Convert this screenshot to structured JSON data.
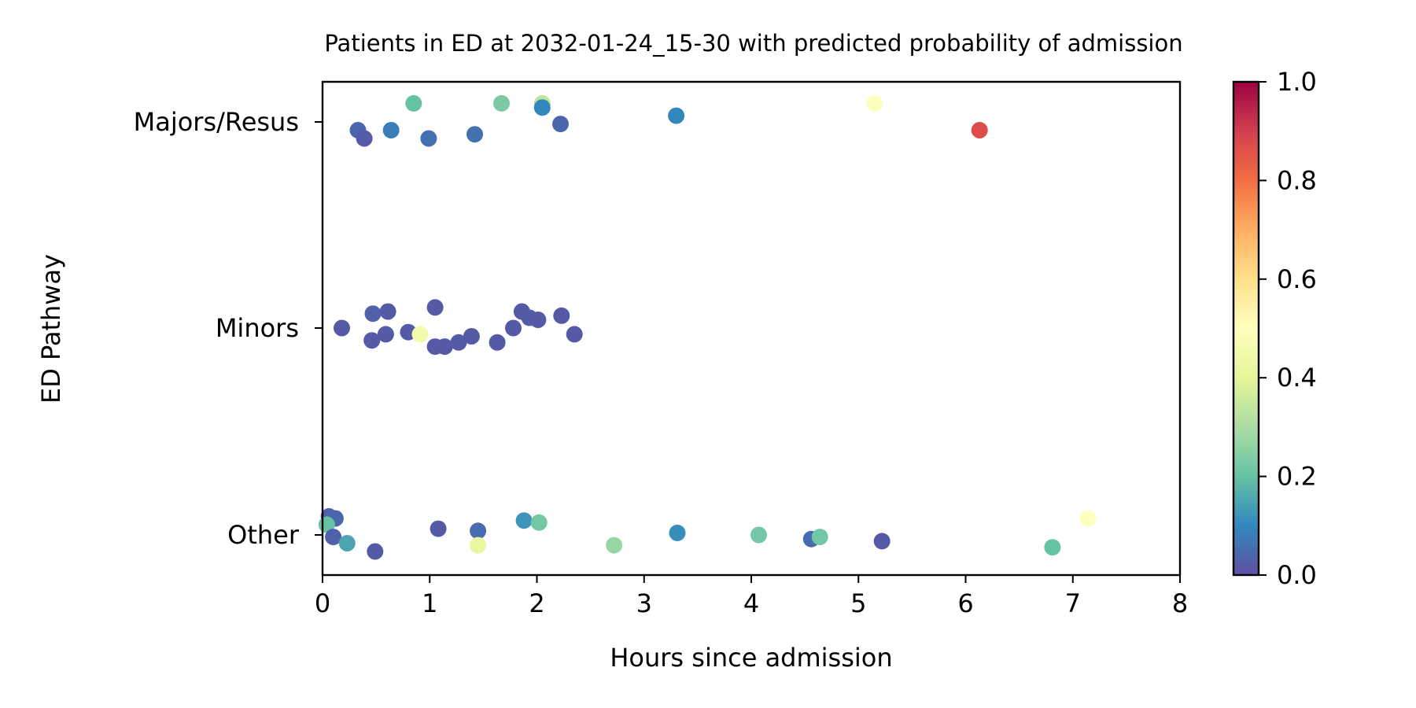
{
  "chart_data": {
    "type": "scatter",
    "title": "Patients in ED at 2032-01-24_15-30 with predicted probability of admission",
    "xlabel": "Hours since admission",
    "ylabel": "ED Pathway",
    "xlim": [
      0,
      8
    ],
    "x_ticks": [
      "0",
      "1",
      "2",
      "3",
      "4",
      "5",
      "6",
      "7",
      "8"
    ],
    "categories": [
      "Majors/Resus",
      "Minors",
      "Other"
    ],
    "grid": false,
    "colormap": "Spectral_r",
    "colorbar": {
      "range": [
        0,
        1
      ],
      "ticks": [
        "0.0",
        "0.2",
        "0.4",
        "0.6",
        "0.8",
        "1.0"
      ]
    },
    "series": [
      {
        "category": "Majors/Resus",
        "points": [
          {
            "x": 0.85,
            "jitter": 0.09,
            "p": 0.2
          },
          {
            "x": 1.67,
            "jitter": 0.09,
            "p": 0.23
          },
          {
            "x": 2.05,
            "jitter": 0.09,
            "p": 0.33
          },
          {
            "x": 2.05,
            "jitter": 0.07,
            "p": 0.1
          },
          {
            "x": 5.15,
            "jitter": 0.09,
            "p": 0.5
          },
          {
            "x": 3.3,
            "jitter": 0.03,
            "p": 0.1
          },
          {
            "x": 2.22,
            "jitter": -0.01,
            "p": 0.04
          },
          {
            "x": 0.33,
            "jitter": -0.04,
            "p": 0.04
          },
          {
            "x": 0.39,
            "jitter": -0.08,
            "p": 0.02
          },
          {
            "x": 0.64,
            "jitter": -0.04,
            "p": 0.08
          },
          {
            "x": 0.99,
            "jitter": -0.08,
            "p": 0.06
          },
          {
            "x": 1.42,
            "jitter": -0.06,
            "p": 0.06
          },
          {
            "x": 6.13,
            "jitter": -0.04,
            "p": 0.87
          }
        ]
      },
      {
        "category": "Minors",
        "points": [
          {
            "x": 0.18,
            "jitter": 0.0,
            "p": 0.02
          },
          {
            "x": 0.47,
            "jitter": 0.07,
            "p": 0.03
          },
          {
            "x": 0.61,
            "jitter": 0.08,
            "p": 0.02
          },
          {
            "x": 1.05,
            "jitter": 0.1,
            "p": 0.02
          },
          {
            "x": 0.46,
            "jitter": -0.06,
            "p": 0.02
          },
          {
            "x": 0.59,
            "jitter": -0.03,
            "p": 0.02
          },
          {
            "x": 0.8,
            "jitter": -0.02,
            "p": 0.02
          },
          {
            "x": 0.91,
            "jitter": -0.03,
            "p": 0.45
          },
          {
            "x": 1.05,
            "jitter": -0.09,
            "p": 0.02
          },
          {
            "x": 1.14,
            "jitter": -0.09,
            "p": 0.02
          },
          {
            "x": 1.27,
            "jitter": -0.07,
            "p": 0.02
          },
          {
            "x": 1.39,
            "jitter": -0.04,
            "p": 0.02
          },
          {
            "x": 1.63,
            "jitter": -0.07,
            "p": 0.02
          },
          {
            "x": 1.78,
            "jitter": 0.0,
            "p": 0.02
          },
          {
            "x": 1.86,
            "jitter": 0.08,
            "p": 0.02
          },
          {
            "x": 1.93,
            "jitter": 0.05,
            "p": 0.02
          },
          {
            "x": 2.01,
            "jitter": 0.04,
            "p": 0.02
          },
          {
            "x": 2.23,
            "jitter": 0.06,
            "p": 0.02
          },
          {
            "x": 2.35,
            "jitter": -0.03,
            "p": 0.02
          }
        ]
      },
      {
        "category": "Other",
        "points": [
          {
            "x": 0.06,
            "jitter": 0.09,
            "p": 0.03
          },
          {
            "x": 0.12,
            "jitter": 0.08,
            "p": 0.04
          },
          {
            "x": 0.04,
            "jitter": 0.05,
            "p": 0.2
          },
          {
            "x": 0.1,
            "jitter": -0.01,
            "p": 0.03
          },
          {
            "x": 0.23,
            "jitter": -0.04,
            "p": 0.15
          },
          {
            "x": 0.49,
            "jitter": -0.08,
            "p": 0.02
          },
          {
            "x": 1.08,
            "jitter": 0.03,
            "p": 0.02
          },
          {
            "x": 1.45,
            "jitter": 0.02,
            "p": 0.05
          },
          {
            "x": 1.45,
            "jitter": -0.05,
            "p": 0.42
          },
          {
            "x": 1.88,
            "jitter": 0.07,
            "p": 0.12
          },
          {
            "x": 2.02,
            "jitter": 0.06,
            "p": 0.22
          },
          {
            "x": 2.72,
            "jitter": -0.05,
            "p": 0.27
          },
          {
            "x": 3.31,
            "jitter": 0.01,
            "p": 0.11
          },
          {
            "x": 4.07,
            "jitter": 0.0,
            "p": 0.22
          },
          {
            "x": 4.56,
            "jitter": -0.02,
            "p": 0.05
          },
          {
            "x": 4.64,
            "jitter": -0.01,
            "p": 0.22
          },
          {
            "x": 5.22,
            "jitter": -0.03,
            "p": 0.02
          },
          {
            "x": 6.81,
            "jitter": -0.06,
            "p": 0.2
          },
          {
            "x": 7.14,
            "jitter": 0.08,
            "p": 0.5
          }
        ]
      }
    ]
  }
}
